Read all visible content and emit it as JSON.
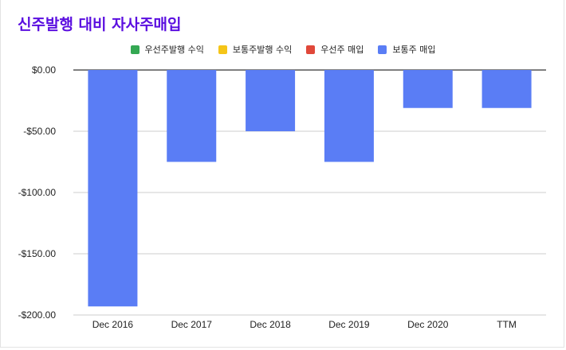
{
  "chart_data": {
    "type": "bar",
    "title": "신주발행 대비 자사주매입",
    "categories": [
      "Dec 2016",
      "Dec 2017",
      "Dec 2018",
      "Dec 2019",
      "Dec 2020",
      "TTM"
    ],
    "series": [
      {
        "name": "우선주발행 수익",
        "color": "#34a853",
        "values": [
          0,
          0,
          0,
          0,
          0,
          0
        ]
      },
      {
        "name": "보통주발행 수익",
        "color": "#f5c518",
        "values": [
          0,
          0,
          0,
          0,
          0,
          0
        ]
      },
      {
        "name": "우선주 매입",
        "color": "#e0483a",
        "values": [
          0,
          0,
          0,
          0,
          0,
          0
        ]
      },
      {
        "name": "보통주 매입",
        "color": "#5a7df5",
        "values": [
          -193,
          -75,
          -50,
          -75,
          -31,
          -31
        ]
      }
    ],
    "ylim": [
      -200,
      0
    ],
    "yticks": [
      "$0.00",
      "-$50.00",
      "-$100.00",
      "-$150.00",
      "-$200.00"
    ],
    "ytick_values": [
      0,
      -50,
      -100,
      -150,
      -200
    ],
    "legend_position": "top",
    "grid": true
  }
}
